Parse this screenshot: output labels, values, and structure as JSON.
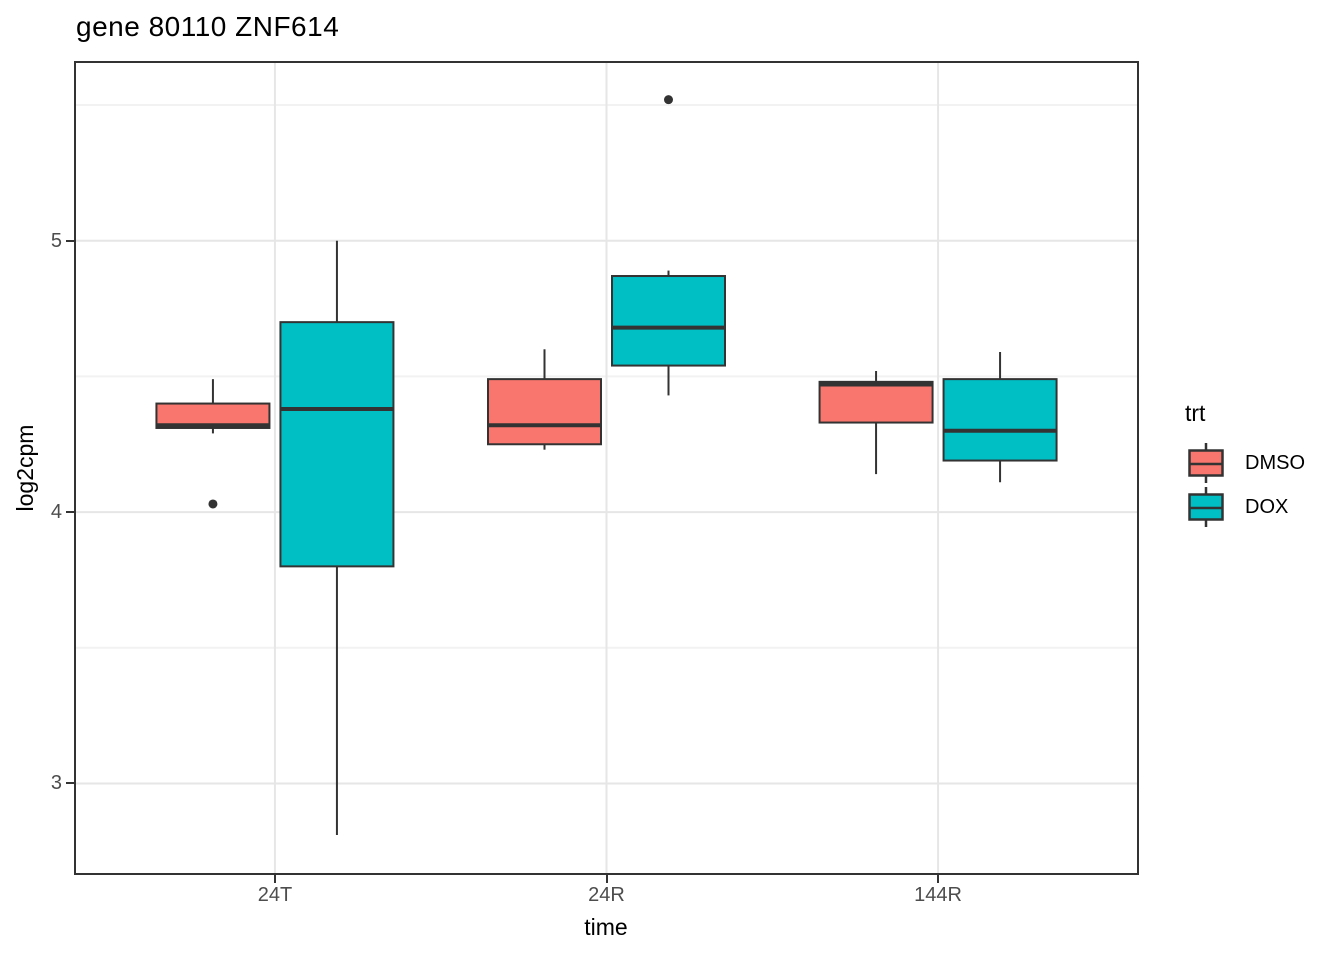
{
  "chart_data": {
    "type": "boxplot",
    "title": "gene 80110 ZNF614",
    "xlabel": "time",
    "ylabel": "log2cpm",
    "categories": [
      "24T",
      "24R",
      "144R"
    ],
    "yticks": [
      5,
      4,
      3
    ],
    "yticks_minor": [
      5.5,
      4.5,
      3.5
    ],
    "ylim": [
      2.67,
      5.655
    ],
    "grid": true,
    "legend_position": "right",
    "legend": {
      "title": "trt",
      "entries": [
        {
          "label": "DMSO",
          "color": "#F8766D"
        },
        {
          "label": "DOX",
          "color": "#00BFC4"
        }
      ]
    },
    "series": [
      {
        "name": "DMSO",
        "color": "#F8766D",
        "boxes": [
          {
            "category": "24T",
            "whisker_low": 4.29,
            "q1": 4.31,
            "median": 4.32,
            "q3": 4.4,
            "whisker_high": 4.49,
            "outliers": [
              4.03
            ]
          },
          {
            "category": "24R",
            "whisker_low": 4.23,
            "q1": 4.25,
            "median": 4.32,
            "q3": 4.49,
            "whisker_high": 4.6,
            "outliers": []
          },
          {
            "category": "144R",
            "whisker_low": 4.14,
            "q1": 4.33,
            "median": 4.47,
            "q3": 4.48,
            "whisker_high": 4.52,
            "outliers": []
          }
        ]
      },
      {
        "name": "DOX",
        "color": "#00BFC4",
        "boxes": [
          {
            "category": "24T",
            "whisker_low": 2.81,
            "q1": 3.8,
            "median": 4.38,
            "q3": 4.7,
            "whisker_high": 5.0,
            "outliers": []
          },
          {
            "category": "24R",
            "whisker_low": 4.43,
            "q1": 4.54,
            "median": 4.68,
            "q3": 4.87,
            "whisker_high": 4.89,
            "outliers": [
              5.52
            ]
          },
          {
            "category": "144R",
            "whisker_low": 4.11,
            "q1": 4.19,
            "median": 4.3,
            "q3": 4.49,
            "whisker_high": 4.59,
            "outliers": []
          }
        ]
      }
    ],
    "colors": {
      "box_border": "#333333",
      "median": "#333333",
      "outlier": "#333333",
      "grid_major": "#e6e6e6",
      "grid_minor": "#f2f2f2",
      "axis_text": "#4d4d4d",
      "panel_border": "#333333"
    }
  }
}
